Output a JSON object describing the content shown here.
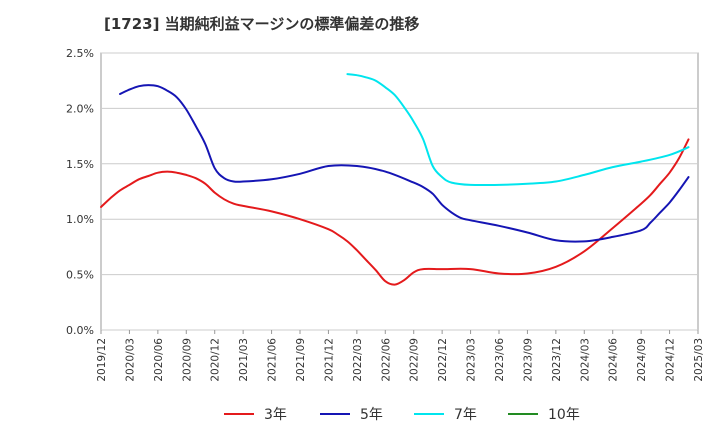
{
  "chart_data": {
    "type": "line",
    "title": "[1723]  当期純利益マージンの標準偏差の推移",
    "xlabel": "",
    "ylabel": "",
    "ylim": [
      0,
      0.025
    ],
    "y_ticks": [
      {
        "value": 0.0,
        "label": "0.0%"
      },
      {
        "value": 0.005,
        "label": "0.5%"
      },
      {
        "value": 0.01,
        "label": "1.0%"
      },
      {
        "value": 0.015,
        "label": "1.5%"
      },
      {
        "value": 0.02,
        "label": "2.0%"
      },
      {
        "value": 0.025,
        "label": "2.5%"
      }
    ],
    "x_ticks": [
      "2019/12",
      "2020/03",
      "2020/06",
      "2020/09",
      "2020/12",
      "2021/03",
      "2021/06",
      "2021/09",
      "2021/12",
      "2022/03",
      "2022/06",
      "2022/09",
      "2022/12",
      "2023/03",
      "2023/06",
      "2023/09",
      "2023/12",
      "2024/03",
      "2024/06",
      "2024/09",
      "2024/12",
      "2025/03"
    ],
    "grid": "horizontal",
    "legend_position": "bottom",
    "series": [
      {
        "name": "3年",
        "color": "#e41a1c",
        "points": [
          [
            "2019/12",
            0.0111
          ],
          [
            "2020/01",
            0.0119
          ],
          [
            "2020/02",
            0.0126
          ],
          [
            "2020/03",
            0.0131
          ],
          [
            "2020/04",
            0.0136
          ],
          [
            "2020/05",
            0.0139
          ],
          [
            "2020/06",
            0.0142
          ],
          [
            "2020/07",
            0.0143
          ],
          [
            "2020/08",
            0.0142
          ],
          [
            "2020/09",
            0.014
          ],
          [
            "2020/10",
            0.0137
          ],
          [
            "2020/11",
            0.0132
          ],
          [
            "2020/12",
            0.0124
          ],
          [
            "2021/01",
            0.0118
          ],
          [
            "2021/02",
            0.0114
          ],
          [
            "2021/03",
            0.0112
          ],
          [
            "2021/06",
            0.0107
          ],
          [
            "2021/09",
            0.01
          ],
          [
            "2021/12",
            0.0091
          ],
          [
            "2022/01",
            0.0086
          ],
          [
            "2022/02",
            0.008
          ],
          [
            "2022/03",
            0.0072
          ],
          [
            "2022/04",
            0.0063
          ],
          [
            "2022/05",
            0.0054
          ],
          [
            "2022/06",
            0.0044
          ],
          [
            "2022/07",
            0.0041
          ],
          [
            "2022/08",
            0.0045
          ],
          [
            "2022/09",
            0.0052
          ],
          [
            "2022/10",
            0.0055
          ],
          [
            "2022/12",
            0.0055
          ],
          [
            "2023/03",
            0.0055
          ],
          [
            "2023/06",
            0.0051
          ],
          [
            "2023/09",
            0.0051
          ],
          [
            "2023/12",
            0.0057
          ],
          [
            "2024/03",
            0.0071
          ],
          [
            "2024/06",
            0.0092
          ],
          [
            "2024/09",
            0.0114
          ],
          [
            "2024/10",
            0.0122
          ],
          [
            "2024/11",
            0.0132
          ],
          [
            "2024/12",
            0.0142
          ],
          [
            "2025/01",
            0.0155
          ],
          [
            "2025/02",
            0.0172
          ]
        ]
      },
      {
        "name": "5年",
        "color": "#1515b4",
        "points": [
          [
            "2020/02",
            0.0213
          ],
          [
            "2020/03",
            0.0217
          ],
          [
            "2020/04",
            0.022
          ],
          [
            "2020/05",
            0.0221
          ],
          [
            "2020/06",
            0.022
          ],
          [
            "2020/07",
            0.0216
          ],
          [
            "2020/08",
            0.021
          ],
          [
            "2020/09",
            0.0199
          ],
          [
            "2020/10",
            0.0184
          ],
          [
            "2020/11",
            0.0168
          ],
          [
            "2020/12",
            0.0146
          ],
          [
            "2021/01",
            0.0137
          ],
          [
            "2021/02",
            0.0134
          ],
          [
            "2021/03",
            0.0134
          ],
          [
            "2021/06",
            0.0136
          ],
          [
            "2021/09",
            0.0141
          ],
          [
            "2021/12",
            0.0148
          ],
          [
            "2022/03",
            0.0148
          ],
          [
            "2022/06",
            0.0143
          ],
          [
            "2022/09",
            0.0133
          ],
          [
            "2022/10",
            0.0129
          ],
          [
            "2022/11",
            0.0123
          ],
          [
            "2022/12",
            0.0113
          ],
          [
            "2023/01",
            0.0106
          ],
          [
            "2023/02",
            0.0101
          ],
          [
            "2023/03",
            0.0099
          ],
          [
            "2023/06",
            0.0094
          ],
          [
            "2023/09",
            0.0088
          ],
          [
            "2023/12",
            0.0081
          ],
          [
            "2024/03",
            0.008
          ],
          [
            "2024/06",
            0.0084
          ],
          [
            "2024/09",
            0.009
          ],
          [
            "2024/10",
            0.0097
          ],
          [
            "2024/11",
            0.0106
          ],
          [
            "2024/12",
            0.0115
          ],
          [
            "2025/01",
            0.0126
          ],
          [
            "2025/02",
            0.0138
          ]
        ]
      },
      {
        "name": "7年",
        "color": "#00e5ee",
        "points": [
          [
            "2022/02",
            0.0231
          ],
          [
            "2022/03",
            0.023
          ],
          [
            "2022/04",
            0.0228
          ],
          [
            "2022/05",
            0.0225
          ],
          [
            "2022/06",
            0.0219
          ],
          [
            "2022/07",
            0.0212
          ],
          [
            "2022/08",
            0.0201
          ],
          [
            "2022/09",
            0.0188
          ],
          [
            "2022/10",
            0.0172
          ],
          [
            "2022/11",
            0.0148
          ],
          [
            "2022/12",
            0.0138
          ],
          [
            "2023/01",
            0.0133
          ],
          [
            "2023/03",
            0.0131
          ],
          [
            "2023/06",
            0.0131
          ],
          [
            "2023/09",
            0.0132
          ],
          [
            "2023/12",
            0.0134
          ],
          [
            "2024/03",
            0.014
          ],
          [
            "2024/06",
            0.0147
          ],
          [
            "2024/09",
            0.0152
          ],
          [
            "2024/12",
            0.0158
          ],
          [
            "2025/02",
            0.0165
          ]
        ]
      },
      {
        "name": "10年",
        "color": "#228b22",
        "points": []
      }
    ]
  }
}
